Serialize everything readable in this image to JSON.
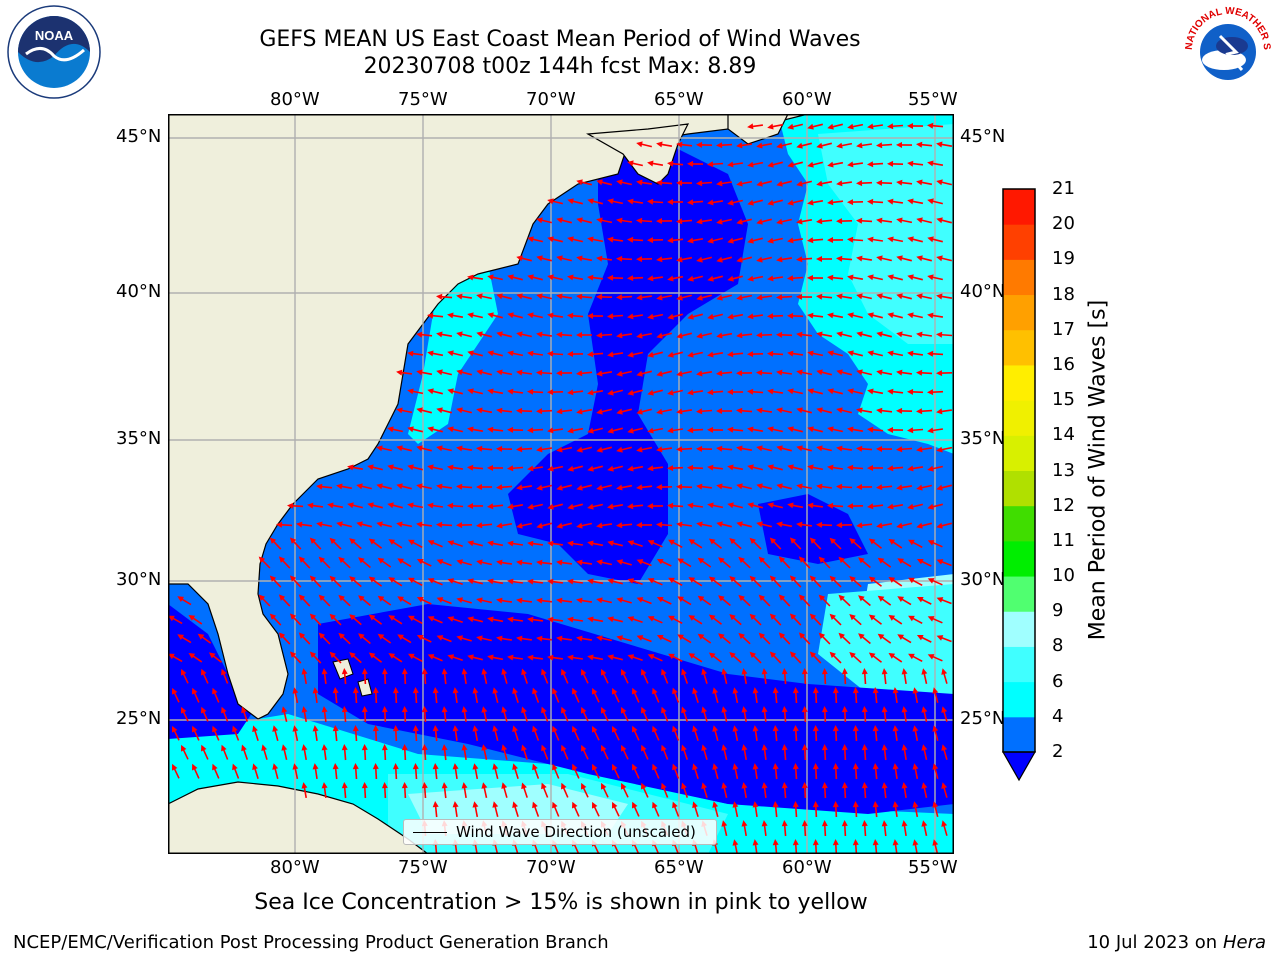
{
  "title": {
    "line1": "GEFS MEAN US East Coast Mean Period of Wind Waves",
    "line2": "20230708 t00z 144h fcst   Max: 8.89"
  },
  "map": {
    "lon_labels": [
      "80°W",
      "75°W",
      "70°W",
      "65°W",
      "60°W",
      "55°W"
    ],
    "lat_labels": [
      "45°N",
      "40°N",
      "35°N",
      "30°N",
      "25°N"
    ],
    "colors": {
      "land": "#efefdc",
      "gridline": "#b0b0b0",
      "arrow": "#ff0000"
    }
  },
  "legend": {
    "label": "Wind Wave Direction (unscaled)"
  },
  "colorbar": {
    "label": "Mean Period of Wind Waves [s]",
    "ticks": [
      "2",
      "4",
      "6",
      "8",
      "9",
      "10",
      "11",
      "12",
      "13",
      "14",
      "15",
      "16",
      "17",
      "18",
      "19",
      "20",
      "21"
    ],
    "colors": [
      "#0070ff",
      "#00ffff",
      "#40ffff",
      "#a0ffff",
      "#50ff70",
      "#00ee00",
      "#40dd00",
      "#b0e000",
      "#d8f000",
      "#f0f000",
      "#ffee00",
      "#ffc000",
      "#ffa000",
      "#ff7a00",
      "#ff4000",
      "#ff1800",
      "#ff0000"
    ],
    "under_color": "#0000ff"
  },
  "field_colors": {
    "lt2": "#0000ff",
    "2to4": "#0070ff",
    "4to6": "#00ffff",
    "6to8": "#40ffff",
    "8to9": "#a0ffff"
  },
  "logos": {
    "noaa_text": "NOAA",
    "nws_text": "NATIONAL WEATHER SERVICE"
  },
  "caption": "Sea Ice Concentration > 15% is shown in pink to yellow",
  "footer": {
    "left": "NCEP/EMC/Verification Post Processing Product Generation Branch",
    "right_date": "10 Jul 2023 on",
    "right_machine": "Hera"
  }
}
